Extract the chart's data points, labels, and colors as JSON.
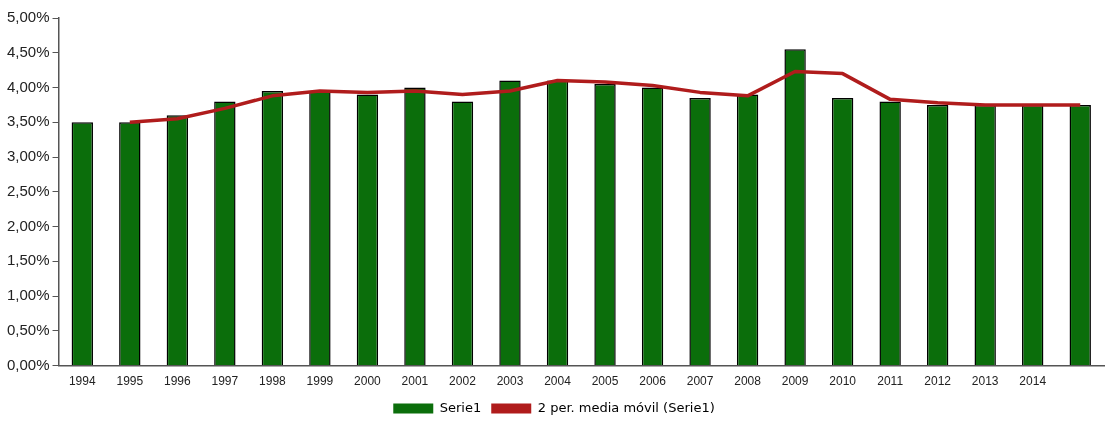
{
  "chart_data": {
    "type": "bar",
    "categories": [
      "1994",
      "1995",
      "1996",
      "1997",
      "1998",
      "1999",
      "2000",
      "2001",
      "2002",
      "2003",
      "2004",
      "2005",
      "2006",
      "2007",
      "2008",
      "2009",
      "2010",
      "2011",
      "2012",
      "2013",
      "2014",
      null
    ],
    "series": [
      {
        "name": "Serie1",
        "color": "#0b6e0b",
        "values": [
          3.5,
          3.5,
          3.6,
          3.8,
          3.95,
          3.95,
          3.9,
          4.0,
          3.8,
          4.1,
          4.1,
          4.05,
          4.0,
          3.85,
          3.9,
          4.55,
          3.85,
          3.8,
          3.75,
          3.75,
          3.75,
          3.75
        ]
      },
      {
        "name": "2 per. media móvil (Serie1)",
        "type": "line",
        "color": "#b01c1c",
        "values": [
          null,
          3.5,
          3.55,
          3.7,
          3.88,
          3.95,
          3.93,
          3.95,
          3.9,
          3.95,
          4.1,
          4.08,
          4.03,
          3.93,
          3.88,
          4.23,
          4.2,
          3.83,
          3.78,
          3.75,
          3.75,
          3.75
        ]
      }
    ],
    "ylim": [
      0,
      5
    ],
    "yticks": [
      {
        "value": 0,
        "label": "0,00%"
      },
      {
        "value": 0.5,
        "label": "0,50%"
      },
      {
        "value": 1,
        "label": "1,00%"
      },
      {
        "value": 1.5,
        "label": "1,50%"
      },
      {
        "value": 2,
        "label": "2,00%"
      },
      {
        "value": 2.5,
        "label": "2,50%"
      },
      {
        "value": 3,
        "label": "3,00%"
      },
      {
        "value": 3.5,
        "label": "3,50%"
      },
      {
        "value": 4,
        "label": "4,00%"
      },
      {
        "value": 4.5,
        "label": "4,50%"
      },
      {
        "value": 5,
        "label": "5,00%"
      }
    ],
    "grid": false,
    "legend": "bottom",
    "marker": "none",
    "line_style": "solid"
  }
}
